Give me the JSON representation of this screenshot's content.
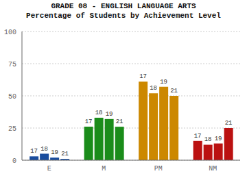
{
  "chart_data": {
    "type": "bar",
    "title": "GRADE 08 - ENGLISH LANGUAGE ARTS",
    "subtitle": "Percentage of Students by Achievement Level",
    "categories": [
      "E",
      "M",
      "PM",
      "NM"
    ],
    "series": [
      {
        "name": "17",
        "values": [
          3,
          26,
          61,
          15
        ]
      },
      {
        "name": "18",
        "values": [
          5,
          33,
          52,
          12
        ]
      },
      {
        "name": "19",
        "values": [
          2,
          32,
          57,
          13
        ]
      },
      {
        "name": "21",
        "values": [
          1,
          26,
          50,
          25
        ]
      }
    ],
    "colors": [
      "#1a4d9e",
      "#1a8c1a",
      "#cc8800",
      "#bb1111"
    ],
    "ylim": [
      0,
      100
    ],
    "yticks": [
      0,
      25,
      50,
      75,
      100
    ],
    "grid": true
  }
}
